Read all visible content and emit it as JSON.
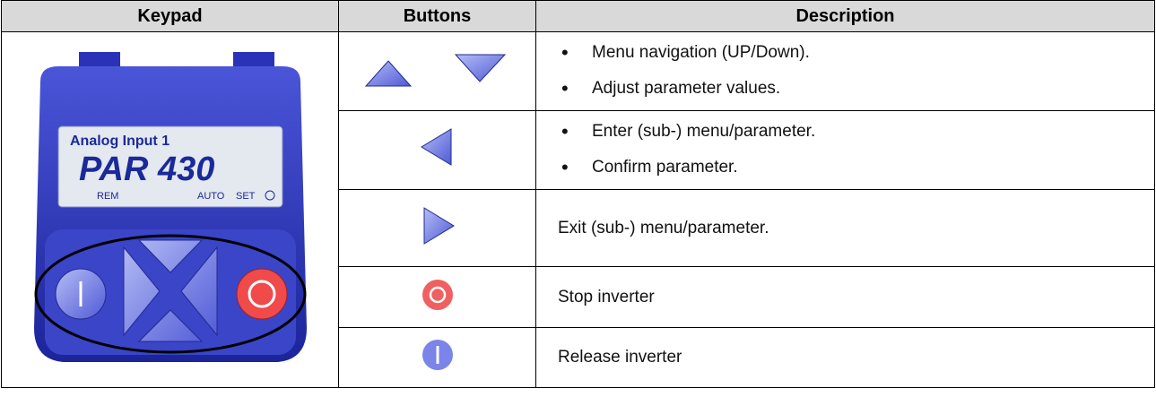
{
  "table": {
    "headers": [
      "Keypad",
      "Buttons",
      "Description"
    ],
    "keypad_display": {
      "line1": "Analog Input 1",
      "line2": "PAR 430",
      "status": [
        "REM",
        "AUTO",
        "SET"
      ]
    },
    "rows": [
      {
        "items": [
          "Menu navigation (UP/Down).",
          "Adjust parameter values."
        ]
      },
      {
        "items": [
          "Enter (sub-) menu/parameter.",
          "Confirm parameter."
        ]
      },
      {
        "text": "Exit (sub-) menu/parameter."
      },
      {
        "text": "Stop inverter"
      },
      {
        "text": "Release inverter"
      }
    ]
  }
}
